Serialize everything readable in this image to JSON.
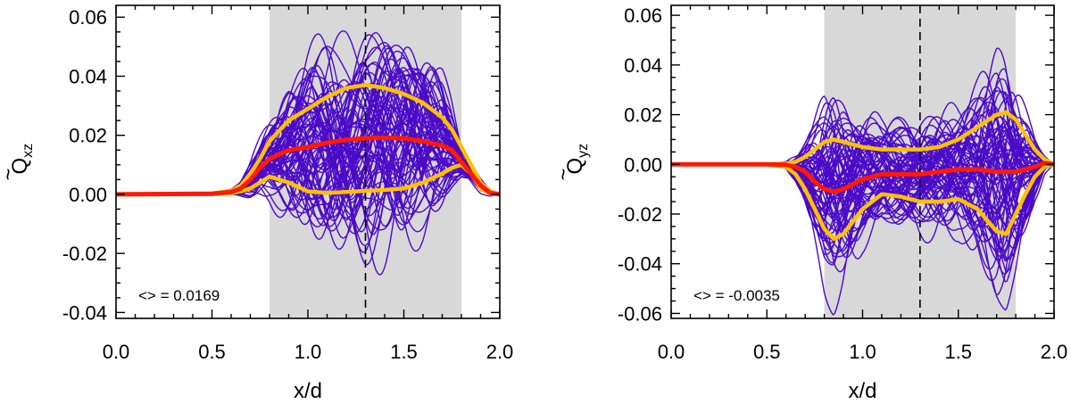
{
  "chart_data": [
    {
      "type": "line",
      "xlabel": "x/d",
      "ylabel_main": "Q",
      "ylabel_sub": "xz",
      "xlim": [
        0.0,
        2.0
      ],
      "ylim": [
        -0.042,
        0.064
      ],
      "xticks": [
        "0.0",
        "0.5",
        "1.0",
        "1.5",
        "2.0"
      ],
      "xtick_values": [
        0.0,
        0.5,
        1.0,
        1.5,
        2.0
      ],
      "yticks": [
        "-0.04",
        "-0.02",
        "0.00",
        "0.02",
        "0.04",
        "0.06"
      ],
      "ytick_values": [
        -0.04,
        -0.02,
        0.0,
        0.02,
        0.04,
        0.06
      ],
      "shaded_region": [
        0.8,
        1.8
      ],
      "dashed_line_x": 1.3,
      "annotation": "<> = 0.0169",
      "colors": {
        "ensemble": "#4B0AC8",
        "mean": "#FF1A00",
        "band": "#FFC000",
        "shade": "#D8D8D8"
      },
      "mean_curve": {
        "x": [
          0.0,
          0.5,
          0.6,
          0.65,
          0.7,
          0.75,
          0.8,
          0.9,
          1.0,
          1.1,
          1.2,
          1.3,
          1.4,
          1.5,
          1.6,
          1.7,
          1.75,
          1.8,
          1.85,
          1.9,
          1.95,
          2.0
        ],
        "y": [
          0.0,
          0.0002,
          0.0008,
          0.002,
          0.005,
          0.009,
          0.012,
          0.015,
          0.016,
          0.0175,
          0.0185,
          0.019,
          0.0192,
          0.019,
          0.018,
          0.0165,
          0.015,
          0.011,
          0.007,
          0.003,
          0.0005,
          0.0
        ]
      },
      "upper_band": {
        "x": [
          0.0,
          0.5,
          0.6,
          0.65,
          0.7,
          0.75,
          0.8,
          0.9,
          1.0,
          1.1,
          1.2,
          1.3,
          1.4,
          1.5,
          1.6,
          1.7,
          1.75,
          1.8,
          1.85,
          1.9,
          1.95,
          2.0
        ],
        "y": [
          0.0,
          0.0003,
          0.0012,
          0.003,
          0.007,
          0.012,
          0.018,
          0.025,
          0.029,
          0.033,
          0.036,
          0.037,
          0.036,
          0.034,
          0.031,
          0.026,
          0.022,
          0.016,
          0.01,
          0.004,
          0.001,
          0.0
        ]
      },
      "lower_band": {
        "x": [
          0.0,
          0.5,
          0.6,
          0.65,
          0.7,
          0.75,
          0.8,
          0.9,
          1.0,
          1.1,
          1.2,
          1.3,
          1.4,
          1.5,
          1.6,
          1.7,
          1.75,
          1.8,
          1.85,
          1.9,
          1.95,
          2.0
        ],
        "y": [
          0.0,
          0.0001,
          0.0004,
          0.001,
          0.002,
          0.004,
          0.006,
          0.004,
          0.001,
          0.0005,
          0.0008,
          0.0012,
          0.0015,
          0.002,
          0.004,
          0.007,
          0.009,
          0.01,
          0.007,
          0.002,
          0.0002,
          0.0
        ]
      }
    },
    {
      "type": "line",
      "xlabel": "x/d",
      "ylabel_main": "Q",
      "ylabel_sub": "yz",
      "xlim": [
        0.0,
        2.0
      ],
      "ylim": [
        -0.062,
        0.064
      ],
      "xticks": [
        "0.0",
        "0.5",
        "1.0",
        "1.5",
        "2.0"
      ],
      "xtick_values": [
        0.0,
        0.5,
        1.0,
        1.5,
        2.0
      ],
      "yticks": [
        "-0.06",
        "-0.04",
        "-0.02",
        "0.00",
        "0.02",
        "0.04",
        "0.06"
      ],
      "ytick_values": [
        -0.06,
        -0.04,
        -0.02,
        0.0,
        0.02,
        0.04,
        0.06
      ],
      "shaded_region": [
        0.8,
        1.8
      ],
      "dashed_line_x": 1.3,
      "annotation": "<> = -0.0035",
      "colors": {
        "ensemble": "#4B0AC8",
        "mean": "#FF1A00",
        "band": "#FFC000",
        "shade": "#D8D8D8"
      },
      "mean_curve": {
        "x": [
          0.0,
          0.5,
          0.6,
          0.65,
          0.7,
          0.75,
          0.8,
          0.85,
          0.9,
          1.0,
          1.1,
          1.2,
          1.3,
          1.4,
          1.5,
          1.6,
          1.7,
          1.8,
          1.85,
          1.9,
          1.95,
          2.0
        ],
        "y": [
          0.0,
          0.0,
          -0.0002,
          -0.001,
          -0.003,
          -0.007,
          -0.01,
          -0.011,
          -0.01,
          -0.006,
          -0.004,
          -0.004,
          -0.004,
          -0.003,
          -0.002,
          -0.002,
          -0.003,
          -0.003,
          -0.002,
          -0.001,
          0.0005,
          0.0
        ]
      },
      "upper_band": {
        "x": [
          0.0,
          0.5,
          0.6,
          0.65,
          0.7,
          0.75,
          0.8,
          0.85,
          0.9,
          1.0,
          1.1,
          1.2,
          1.3,
          1.4,
          1.5,
          1.6,
          1.7,
          1.75,
          1.8,
          1.85,
          1.9,
          1.95,
          2.0
        ],
        "y": [
          0.0,
          0.0,
          0.0003,
          0.001,
          0.003,
          0.006,
          0.009,
          0.01,
          0.009,
          0.007,
          0.006,
          0.006,
          0.006,
          0.007,
          0.01,
          0.015,
          0.02,
          0.021,
          0.018,
          0.012,
          0.006,
          0.002,
          0.0
        ]
      },
      "lower_band": {
        "x": [
          0.0,
          0.5,
          0.6,
          0.65,
          0.7,
          0.75,
          0.8,
          0.85,
          0.9,
          1.0,
          1.1,
          1.2,
          1.3,
          1.4,
          1.5,
          1.6,
          1.7,
          1.75,
          1.8,
          1.85,
          1.9,
          1.95,
          2.0
        ],
        "y": [
          0.0,
          0.0,
          -0.001,
          -0.004,
          -0.01,
          -0.018,
          -0.026,
          -0.03,
          -0.028,
          -0.018,
          -0.012,
          -0.013,
          -0.015,
          -0.015,
          -0.014,
          -0.018,
          -0.027,
          -0.028,
          -0.02,
          -0.012,
          -0.005,
          -0.001,
          0.0
        ]
      }
    }
  ]
}
